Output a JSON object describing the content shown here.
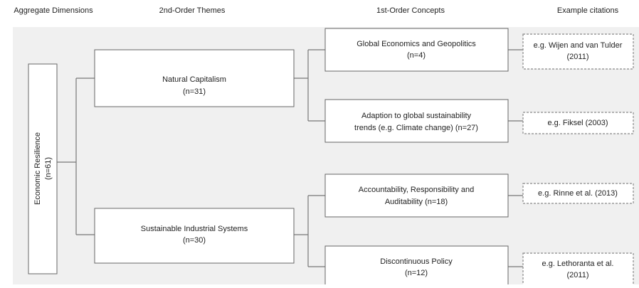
{
  "headers": [
    "Aggregate Dimensions",
    "2nd-Order Themes",
    "1st-Order Concepts",
    "Example citations"
  ],
  "aggregate": {
    "label": "Economic Resilience",
    "count": "(n=61)"
  },
  "themes": [
    {
      "label": "Natural Capitalism",
      "count": "(n=31)"
    },
    {
      "label": "Sustainable Industrial Systems",
      "count": "(n=30)"
    }
  ],
  "concepts": [
    {
      "lines": [
        "Global Economics and Geopolitics",
        "(n=4)"
      ]
    },
    {
      "lines": [
        "Adaption to global sustainability",
        "trends (e.g. Climate change)  (n=27)"
      ]
    },
    {
      "lines": [
        "Accountability, Responsibility and",
        "Auditability (n=18)"
      ]
    },
    {
      "lines": [
        "Discontinuous Policy",
        "(n=12)"
      ]
    }
  ],
  "citations": [
    {
      "lines": [
        "e.g. Wijen and van Tulder",
        "(2011)"
      ]
    },
    {
      "lines": [
        "e.g. Fiksel (2003)"
      ]
    },
    {
      "lines": [
        "e.g. Rinne et al. (2013)"
      ]
    },
    {
      "lines": [
        "e.g. Lethoranta et al.",
        "(2011)"
      ]
    }
  ]
}
